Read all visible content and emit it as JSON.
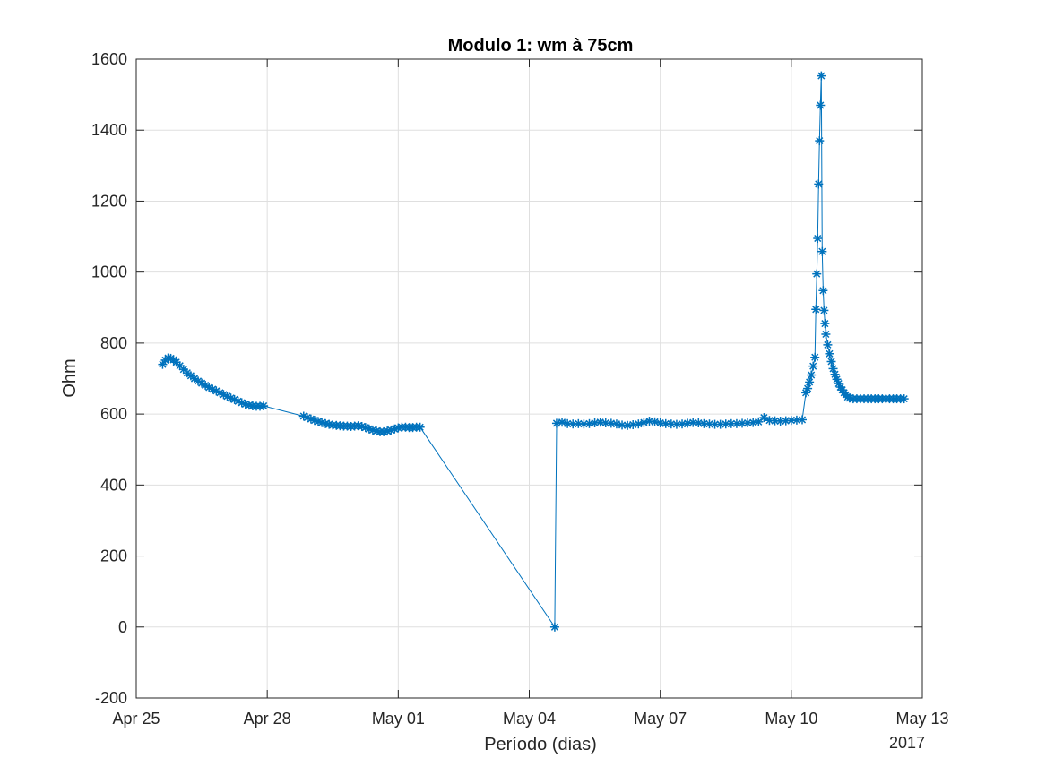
{
  "chart_data": {
    "type": "line",
    "title": "Modulo 1: wm à 75cm",
    "xlabel": "Período (dias)",
    "ylabel": "Ohm",
    "x_axis_secondary_label": "2017",
    "x_scale": "time",
    "xlim": [
      "2017-04-25",
      "2017-05-13"
    ],
    "ylim": [
      -200,
      1600
    ],
    "x_tick_labels": [
      "Apr 25",
      "Apr 28",
      "May 01",
      "May 04",
      "May 07",
      "May 10",
      "May 13"
    ],
    "x_ticks": [
      "2017-04-25",
      "2017-04-28",
      "2017-05-01",
      "2017-05-04",
      "2017-05-07",
      "2017-05-10",
      "2017-05-13"
    ],
    "y_ticks": [
      -200,
      0,
      200,
      400,
      600,
      800,
      1000,
      1200,
      1400,
      1600
    ],
    "y_tick_labels": [
      "-200",
      "0",
      "200",
      "400",
      "600",
      "800",
      "1000",
      "1200",
      "1400",
      "1600"
    ],
    "grid": true,
    "legend": "none",
    "marker": "asterisk",
    "color": "#0072bd",
    "series": [
      {
        "points": [
          [
            "2017-04-25T14:30",
            740
          ],
          [
            "2017-04-25T16:00",
            752
          ],
          [
            "2017-04-25T17:30",
            758
          ],
          [
            "2017-04-25T19:00",
            757
          ],
          [
            "2017-04-25T20:30",
            753
          ],
          [
            "2017-04-25T22:00",
            746
          ],
          [
            "2017-04-26T00:00",
            736
          ],
          [
            "2017-04-26T02:00",
            726
          ],
          [
            "2017-04-26T04:00",
            716
          ],
          [
            "2017-04-26T06:00",
            708
          ],
          [
            "2017-04-26T08:00",
            700
          ],
          [
            "2017-04-26T10:00",
            693
          ],
          [
            "2017-04-26T12:00",
            687
          ],
          [
            "2017-04-26T14:00",
            681
          ],
          [
            "2017-04-26T16:00",
            675
          ],
          [
            "2017-04-26T18:00",
            670
          ],
          [
            "2017-04-26T20:00",
            665
          ],
          [
            "2017-04-26T22:00",
            660
          ],
          [
            "2017-04-27T00:00",
            655
          ],
          [
            "2017-04-27T02:00",
            650
          ],
          [
            "2017-04-27T04:00",
            645
          ],
          [
            "2017-04-27T06:00",
            641
          ],
          [
            "2017-04-27T08:00",
            636
          ],
          [
            "2017-04-27T10:00",
            632
          ],
          [
            "2017-04-27T12:00",
            628
          ],
          [
            "2017-04-27T14:00",
            625
          ],
          [
            "2017-04-27T16:00",
            623
          ],
          [
            "2017-04-27T18:00",
            622
          ],
          [
            "2017-04-27T20:00",
            622
          ],
          [
            "2017-04-27T22:00",
            623
          ],
          [
            "2017-04-28T20:00",
            594
          ],
          [
            "2017-04-28T22:00",
            590
          ],
          [
            "2017-04-29T00:00",
            586
          ],
          [
            "2017-04-29T02:00",
            582
          ],
          [
            "2017-04-29T04:00",
            579
          ],
          [
            "2017-04-29T06:00",
            576
          ],
          [
            "2017-04-29T08:00",
            573
          ],
          [
            "2017-04-29T10:00",
            571
          ],
          [
            "2017-04-29T12:00",
            569
          ],
          [
            "2017-04-29T14:00",
            568
          ],
          [
            "2017-04-29T16:00",
            567
          ],
          [
            "2017-04-29T18:00",
            566
          ],
          [
            "2017-04-29T20:00",
            566
          ],
          [
            "2017-04-29T22:00",
            565
          ],
          [
            "2017-04-30T00:00",
            566
          ],
          [
            "2017-04-30T02:00",
            567
          ],
          [
            "2017-04-30T04:00",
            565
          ],
          [
            "2017-04-30T06:00",
            562
          ],
          [
            "2017-04-30T08:00",
            558
          ],
          [
            "2017-04-30T10:00",
            555
          ],
          [
            "2017-04-30T12:00",
            552
          ],
          [
            "2017-04-30T14:00",
            550
          ],
          [
            "2017-04-30T16:00",
            550
          ],
          [
            "2017-04-30T18:00",
            552
          ],
          [
            "2017-04-30T20:00",
            555
          ],
          [
            "2017-04-30T22:00",
            558
          ],
          [
            "2017-05-01T00:00",
            561
          ],
          [
            "2017-05-01T02:00",
            563
          ],
          [
            "2017-05-01T04:00",
            563
          ],
          [
            "2017-05-01T06:00",
            562
          ],
          [
            "2017-05-01T08:00",
            562
          ],
          [
            "2017-05-01T10:00",
            563
          ],
          [
            "2017-05-01T12:00",
            563
          ],
          [
            "2017-05-04T14:00",
            0
          ],
          [
            "2017-05-04T15:00",
            574
          ],
          [
            "2017-05-04T18:00",
            577
          ],
          [
            "2017-05-04T21:00",
            573
          ],
          [
            "2017-05-05T00:00",
            572
          ],
          [
            "2017-05-05T03:00",
            573
          ],
          [
            "2017-05-05T06:00",
            572
          ],
          [
            "2017-05-05T09:00",
            573
          ],
          [
            "2017-05-05T12:00",
            575
          ],
          [
            "2017-05-05T15:00",
            577
          ],
          [
            "2017-05-05T18:00",
            575
          ],
          [
            "2017-05-05T21:00",
            574
          ],
          [
            "2017-05-06T00:00",
            572
          ],
          [
            "2017-05-06T03:00",
            569
          ],
          [
            "2017-05-06T06:00",
            568
          ],
          [
            "2017-05-06T09:00",
            570
          ],
          [
            "2017-05-06T12:00",
            572
          ],
          [
            "2017-05-06T15:00",
            576
          ],
          [
            "2017-05-06T18:00",
            580
          ],
          [
            "2017-05-06T21:00",
            578
          ],
          [
            "2017-05-07T00:00",
            575
          ],
          [
            "2017-05-07T03:00",
            573
          ],
          [
            "2017-05-07T06:00",
            572
          ],
          [
            "2017-05-07T09:00",
            571
          ],
          [
            "2017-05-07T12:00",
            572
          ],
          [
            "2017-05-07T15:00",
            574
          ],
          [
            "2017-05-07T18:00",
            576
          ],
          [
            "2017-05-07T21:00",
            575
          ],
          [
            "2017-05-08T00:00",
            573
          ],
          [
            "2017-05-08T03:00",
            572
          ],
          [
            "2017-05-08T06:00",
            571
          ],
          [
            "2017-05-08T09:00",
            571
          ],
          [
            "2017-05-08T12:00",
            572
          ],
          [
            "2017-05-08T15:00",
            573
          ],
          [
            "2017-05-08T18:00",
            573
          ],
          [
            "2017-05-08T21:00",
            574
          ],
          [
            "2017-05-09T00:00",
            575
          ],
          [
            "2017-05-09T03:00",
            576
          ],
          [
            "2017-05-09T06:00",
            578
          ],
          [
            "2017-05-09T09:00",
            590
          ],
          [
            "2017-05-09T12:00",
            582
          ],
          [
            "2017-05-09T15:00",
            581
          ],
          [
            "2017-05-09T18:00",
            580
          ],
          [
            "2017-05-09T21:00",
            581
          ],
          [
            "2017-05-10T00:00",
            582
          ],
          [
            "2017-05-10T03:00",
            583
          ],
          [
            "2017-05-10T06:00",
            584
          ],
          [
            "2017-05-10T08:00",
            660
          ],
          [
            "2017-05-10T09:00",
            672
          ],
          [
            "2017-05-10T10:00",
            690
          ],
          [
            "2017-05-10T11:00",
            710
          ],
          [
            "2017-05-10T12:00",
            735
          ],
          [
            "2017-05-10T13:00",
            760
          ],
          [
            "2017-05-10T13:30",
            895
          ],
          [
            "2017-05-10T14:00",
            995
          ],
          [
            "2017-05-10T14:30",
            1095
          ],
          [
            "2017-05-10T15:00",
            1248
          ],
          [
            "2017-05-10T15:30",
            1370
          ],
          [
            "2017-05-10T16:00",
            1470
          ],
          [
            "2017-05-10T16:30",
            1553
          ],
          [
            "2017-05-10T17:00",
            1058
          ],
          [
            "2017-05-10T17:30",
            948
          ],
          [
            "2017-05-10T18:00",
            892
          ],
          [
            "2017-05-10T18:30",
            855
          ],
          [
            "2017-05-10T19:00",
            825
          ],
          [
            "2017-05-10T20:00",
            795
          ],
          [
            "2017-05-10T21:00",
            770
          ],
          [
            "2017-05-10T22:00",
            748
          ],
          [
            "2017-05-10T23:00",
            728
          ],
          [
            "2017-05-11T00:00",
            712
          ],
          [
            "2017-05-11T01:00",
            698
          ],
          [
            "2017-05-11T02:00",
            686
          ],
          [
            "2017-05-11T03:00",
            676
          ],
          [
            "2017-05-11T04:00",
            668
          ],
          [
            "2017-05-11T05:00",
            660
          ],
          [
            "2017-05-11T06:00",
            654
          ],
          [
            "2017-05-11T07:00",
            648
          ],
          [
            "2017-05-11T08:00",
            645
          ],
          [
            "2017-05-11T10:00",
            643
          ],
          [
            "2017-05-11T12:00",
            643
          ],
          [
            "2017-05-11T14:00",
            643
          ],
          [
            "2017-05-11T16:00",
            643
          ],
          [
            "2017-05-11T18:00",
            643
          ],
          [
            "2017-05-11T20:00",
            643
          ],
          [
            "2017-05-11T22:00",
            643
          ],
          [
            "2017-05-12T00:00",
            643
          ],
          [
            "2017-05-12T02:00",
            643
          ],
          [
            "2017-05-12T04:00",
            643
          ],
          [
            "2017-05-12T06:00",
            643
          ],
          [
            "2017-05-12T08:00",
            643
          ],
          [
            "2017-05-12T10:00",
            643
          ],
          [
            "2017-05-12T12:00",
            643
          ],
          [
            "2017-05-12T14:00",
            643
          ]
        ]
      }
    ]
  }
}
